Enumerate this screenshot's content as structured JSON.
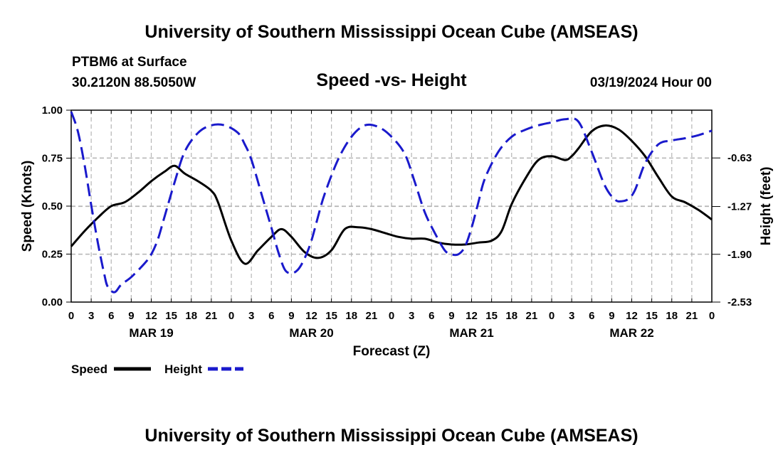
{
  "header": {
    "title": "University of Southern Mississippi Ocean Cube (AMSEAS)",
    "footer_title": "University of Southern Mississippi Ocean Cube (AMSEAS)",
    "station": "PTBM6 at Surface",
    "coords": "30.2120N  88.5050W",
    "datetime": "03/19/2024 Hour 00"
  },
  "chart_data": {
    "type": "line",
    "title": "Speed -vs- Height",
    "xlabel": "Forecast (Z)",
    "ylabel": "Speed (Knots)",
    "y2label": "Height (feet)",
    "x_range_hours": [
      0,
      96
    ],
    "ylim": [
      0,
      1
    ],
    "y_ticks": [
      "0.00",
      "0.25",
      "0.50",
      "0.75",
      "1.00"
    ],
    "y2lim": [
      -2.53,
      0.0
    ],
    "y2_ticks": [
      "-2.53",
      "-1.90",
      "-1.27",
      "-0.63"
    ],
    "x_tick_labels": [
      "0",
      "3",
      "6",
      "9",
      "12",
      "15",
      "18",
      "21",
      "0",
      "3",
      "6",
      "9",
      "12",
      "15",
      "18",
      "21",
      "0",
      "3",
      "6",
      "9",
      "12",
      "15",
      "18",
      "21",
      "0",
      "3",
      "6",
      "9",
      "12",
      "15",
      "18",
      "21",
      "0"
    ],
    "date_labels": [
      {
        "hour": 12,
        "label": "MAR 19"
      },
      {
        "hour": 36,
        "label": "MAR 20"
      },
      {
        "hour": 60,
        "label": "MAR 21"
      },
      {
        "hour": 84,
        "label": "MAR 22"
      }
    ],
    "legend": [
      {
        "name": "Speed",
        "color": "#000000",
        "style": "solid"
      },
      {
        "name": "Height",
        "color": "#1a1acc",
        "style": "dashed"
      }
    ],
    "series": [
      {
        "name": "Speed",
        "axis": "left",
        "hours": [
          0,
          2,
          4,
          6,
          8,
          10,
          12,
          14,
          15.5,
          17,
          19,
          21,
          22,
          24,
          26,
          28,
          30,
          31.5,
          33,
          35,
          37,
          39,
          41,
          43,
          45,
          47,
          49,
          51,
          53,
          55,
          57,
          59,
          61,
          63,
          64.5,
          66,
          68,
          70,
          72,
          74,
          75,
          76,
          78,
          80,
          82,
          84,
          86,
          88,
          90,
          92,
          94,
          96
        ],
        "values": [
          0.29,
          0.37,
          0.44,
          0.5,
          0.52,
          0.57,
          0.63,
          0.68,
          0.71,
          0.67,
          0.63,
          0.58,
          0.52,
          0.32,
          0.2,
          0.27,
          0.34,
          0.38,
          0.34,
          0.26,
          0.23,
          0.27,
          0.38,
          0.39,
          0.38,
          0.36,
          0.34,
          0.33,
          0.33,
          0.31,
          0.3,
          0.3,
          0.31,
          0.32,
          0.37,
          0.51,
          0.64,
          0.74,
          0.76,
          0.74,
          0.76,
          0.8,
          0.89,
          0.92,
          0.9,
          0.84,
          0.76,
          0.65,
          0.55,
          0.52,
          0.48,
          0.43
        ]
      },
      {
        "name": "Height",
        "axis": "right",
        "hours": [
          0,
          1,
          2,
          3,
          4,
          5,
          5.5,
          6.5,
          7.5,
          9,
          11,
          12,
          13,
          14,
          15.5,
          17,
          19,
          21,
          23,
          25,
          26,
          27,
          28.5,
          30,
          31,
          32,
          33,
          34,
          35,
          36,
          37,
          38,
          40,
          42,
          44,
          46,
          48,
          50,
          51.5,
          53,
          54.5,
          56,
          57,
          58,
          59,
          60,
          61,
          62,
          64,
          66,
          68,
          70,
          72,
          74,
          76,
          78,
          80,
          81.5,
          82.5,
          83.5,
          84.5,
          86,
          88,
          90,
          92,
          94,
          96
        ],
        "values": [
          -0.02,
          -0.28,
          -0.72,
          -1.25,
          -1.75,
          -2.18,
          -2.33,
          -2.4,
          -2.3,
          -2.2,
          -2.02,
          -1.9,
          -1.7,
          -1.4,
          -0.95,
          -0.55,
          -0.3,
          -0.2,
          -0.2,
          -0.3,
          -0.45,
          -0.65,
          -1.1,
          -1.55,
          -1.86,
          -2.1,
          -2.15,
          -2.1,
          -1.95,
          -1.72,
          -1.4,
          -1.1,
          -0.65,
          -0.35,
          -0.2,
          -0.22,
          -0.35,
          -0.58,
          -0.95,
          -1.35,
          -1.62,
          -1.85,
          -1.9,
          -1.9,
          -1.8,
          -1.55,
          -1.22,
          -0.9,
          -0.55,
          -0.35,
          -0.26,
          -0.2,
          -0.16,
          -0.12,
          -0.15,
          -0.55,
          -1.0,
          -1.18,
          -1.2,
          -1.17,
          -1.05,
          -0.7,
          -0.45,
          -0.4,
          -0.37,
          -0.33,
          -0.27
        ]
      }
    ]
  }
}
